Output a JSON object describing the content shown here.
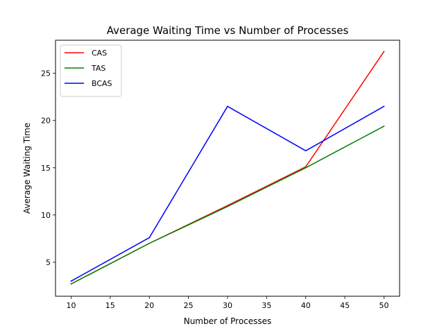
{
  "chart_data": {
    "type": "line",
    "title": "Average Waiting Time vs Number of Processes",
    "xlabel": "Number of Processes",
    "ylabel": "Average Waiting Time",
    "x": [
      10,
      20,
      30,
      40,
      50
    ],
    "xlim": [
      8,
      52
    ],
    "ylim": [
      1.4,
      28.5
    ],
    "xticks": [
      10,
      15,
      20,
      25,
      30,
      35,
      40,
      45,
      50
    ],
    "yticks": [
      5,
      10,
      15,
      20,
      25
    ],
    "grid": false,
    "legend_position": "top-left",
    "series": [
      {
        "name": "CAS",
        "color": "#ff0000",
        "values": [
          2.7,
          7.0,
          11.0,
          15.1,
          27.3
        ]
      },
      {
        "name": "TAS",
        "color": "#008000",
        "values": [
          2.7,
          7.0,
          10.9,
          15.0,
          19.4
        ]
      },
      {
        "name": "BCAS",
        "color": "#0000ff",
        "values": [
          3.0,
          7.6,
          21.5,
          16.8,
          21.5
        ]
      }
    ]
  }
}
